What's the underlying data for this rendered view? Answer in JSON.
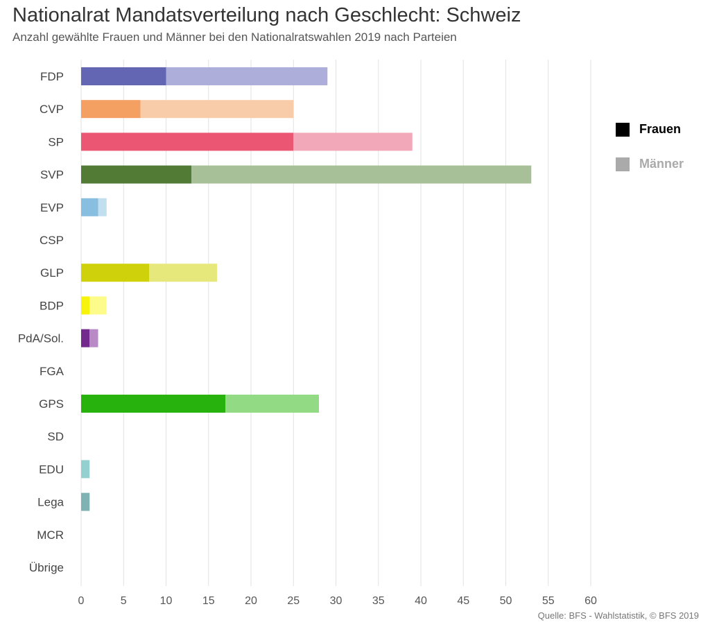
{
  "chart_data": {
    "type": "bar",
    "orientation": "horizontal",
    "stacked": true,
    "title": "Nationalrat Mandatsverteilung nach Geschlecht: Schweiz",
    "subtitle": "Anzahl gewählte Frauen und Männer bei den Nationalratswahlen 2019 nach Parteien",
    "categories": [
      "FDP",
      "CVP",
      "SP",
      "SVP",
      "EVP",
      "CSP",
      "GLP",
      "BDP",
      "PdA/Sol.",
      "FGA",
      "GPS",
      "SD",
      "EDU",
      "Lega",
      "MCR",
      "Übrige"
    ],
    "series": [
      {
        "name": "Frauen",
        "values": [
          10,
          7,
          25,
          13,
          2,
          0,
          8,
          1,
          1,
          0,
          17,
          0,
          0,
          0,
          0,
          0
        ]
      },
      {
        "name": "Männer",
        "values": [
          19,
          18,
          14,
          40,
          1,
          0,
          8,
          2,
          1,
          0,
          11,
          0,
          1,
          1,
          0,
          0
        ]
      }
    ],
    "colors_frauen": [
      "#6366b3",
      "#f4a062",
      "#eb5673",
      "#527b36",
      "#88bedf",
      "#cccccc",
      "#cfd10a",
      "#f8f30c",
      "#732a8d",
      "#cccccc",
      "#27b20e",
      "#cccccc",
      "#94d0d0",
      "#7fb3b3",
      "#cccccc",
      "#cccccc"
    ],
    "colors_maenner": [
      "#adaed9",
      "#f8cca9",
      "#f3a8b9",
      "#a8c097",
      "#c2dff0",
      "#e6e6e6",
      "#e6e87b",
      "#fdfb8a",
      "#b98bc6",
      "#e6e6e6",
      "#92da83",
      "#e6e6e6",
      "#94d0d0",
      "#7fb3b3",
      "#e6e6e6",
      "#e6e6e6"
    ],
    "xlim": [
      0,
      60
    ],
    "xticks": [
      0,
      5,
      10,
      15,
      20,
      25,
      30,
      35,
      40,
      45,
      50,
      55,
      60
    ],
    "grid": true,
    "legend_position": "right"
  },
  "legend": {
    "frauen": "Frauen",
    "maenner": "Männer"
  },
  "source": "Quelle: BFS - Wahlstatistik, © BFS 2019"
}
